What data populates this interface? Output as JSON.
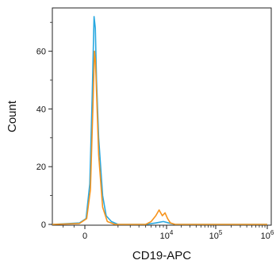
{
  "chart_data": {
    "type": "line",
    "xlabel": "CD19-APC",
    "ylabel": "Count",
    "x_scale": "biexponential",
    "x_ticks": [
      {
        "value": 0,
        "label": "0"
      },
      {
        "value": 10000,
        "base": "10",
        "exp": "4"
      },
      {
        "value": 100000,
        "base": "10",
        "exp": "5"
      },
      {
        "value": 1000000,
        "base": "10",
        "exp": "6"
      }
    ],
    "y_ticks": [
      0,
      20,
      40,
      60
    ],
    "ylim": [
      0,
      75
    ],
    "grid": false,
    "legend": "none",
    "series": [
      {
        "color": "#29a8e0",
        "points": [
          [
            -3000,
            0
          ],
          [
            -500,
            0.5
          ],
          [
            100,
            2
          ],
          [
            400,
            14
          ],
          [
            600,
            45
          ],
          [
            750,
            72
          ],
          [
            850,
            68
          ],
          [
            950,
            50
          ],
          [
            1050,
            30
          ],
          [
            1200,
            10
          ],
          [
            1350,
            3
          ],
          [
            1600,
            1
          ],
          [
            2000,
            0
          ],
          [
            5000,
            0
          ],
          [
            7000,
            0.5
          ],
          [
            9000,
            1
          ],
          [
            11000,
            0.5
          ],
          [
            15000,
            0
          ],
          [
            1000000,
            0
          ]
        ]
      },
      {
        "color": "#f7941d",
        "points": [
          [
            -3000,
            0
          ],
          [
            -500,
            0.3
          ],
          [
            150,
            2
          ],
          [
            450,
            12
          ],
          [
            650,
            40
          ],
          [
            780,
            60
          ],
          [
            860,
            57
          ],
          [
            950,
            46
          ],
          [
            1050,
            24
          ],
          [
            1200,
            6
          ],
          [
            1400,
            1
          ],
          [
            1800,
            0
          ],
          [
            5000,
            0
          ],
          [
            6000,
            1
          ],
          [
            7000,
            3
          ],
          [
            7800,
            5
          ],
          [
            8700,
            3
          ],
          [
            9500,
            4
          ],
          [
            10500,
            2
          ],
          [
            12000,
            0.5
          ],
          [
            15000,
            0
          ],
          [
            1000000,
            0
          ]
        ]
      }
    ]
  }
}
